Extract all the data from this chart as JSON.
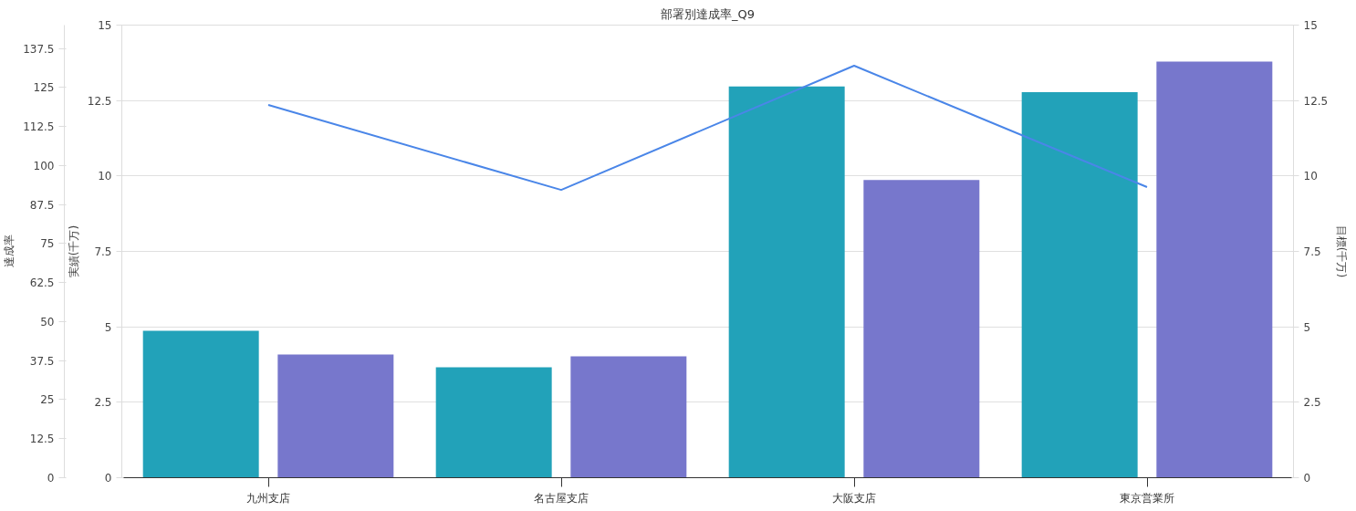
{
  "chart_data": {
    "type": "bar",
    "title": "部署別達成率_Q9",
    "categories": [
      "九州支店",
      "名古屋支店",
      "大阪支店",
      "東京営業所"
    ],
    "series": [
      {
        "axis": "y",
        "color": "#22a2b9",
        "values": [
          4.87,
          3.66,
          12.97,
          12.78
        ]
      },
      {
        "axis": "y2",
        "color": "#7777cc",
        "values": [
          4.08,
          4.02,
          9.87,
          13.79
        ]
      },
      {
        "type": "line",
        "axis": "y3",
        "color": "#4a86e8",
        "values": [
          119.4,
          92.2,
          132,
          93.1
        ]
      }
    ],
    "ylabel": "実績(千万)",
    "y2label": "目標(千万)",
    "y3label": "達成率",
    "ylim": [
      0,
      15
    ],
    "yticks": [
      0,
      2.5,
      5,
      7.5,
      10,
      12.5,
      15
    ],
    "y2lim": [
      0,
      15
    ],
    "y2ticks": [
      0,
      2.5,
      5,
      7.5,
      10,
      12.5,
      15
    ],
    "y3lim": [
      0,
      145
    ],
    "y3ticks": [
      0,
      12.5,
      25,
      37.5,
      50,
      62.5,
      75,
      87.5,
      100,
      112.5,
      125,
      137.5
    ],
    "grid": "y"
  }
}
